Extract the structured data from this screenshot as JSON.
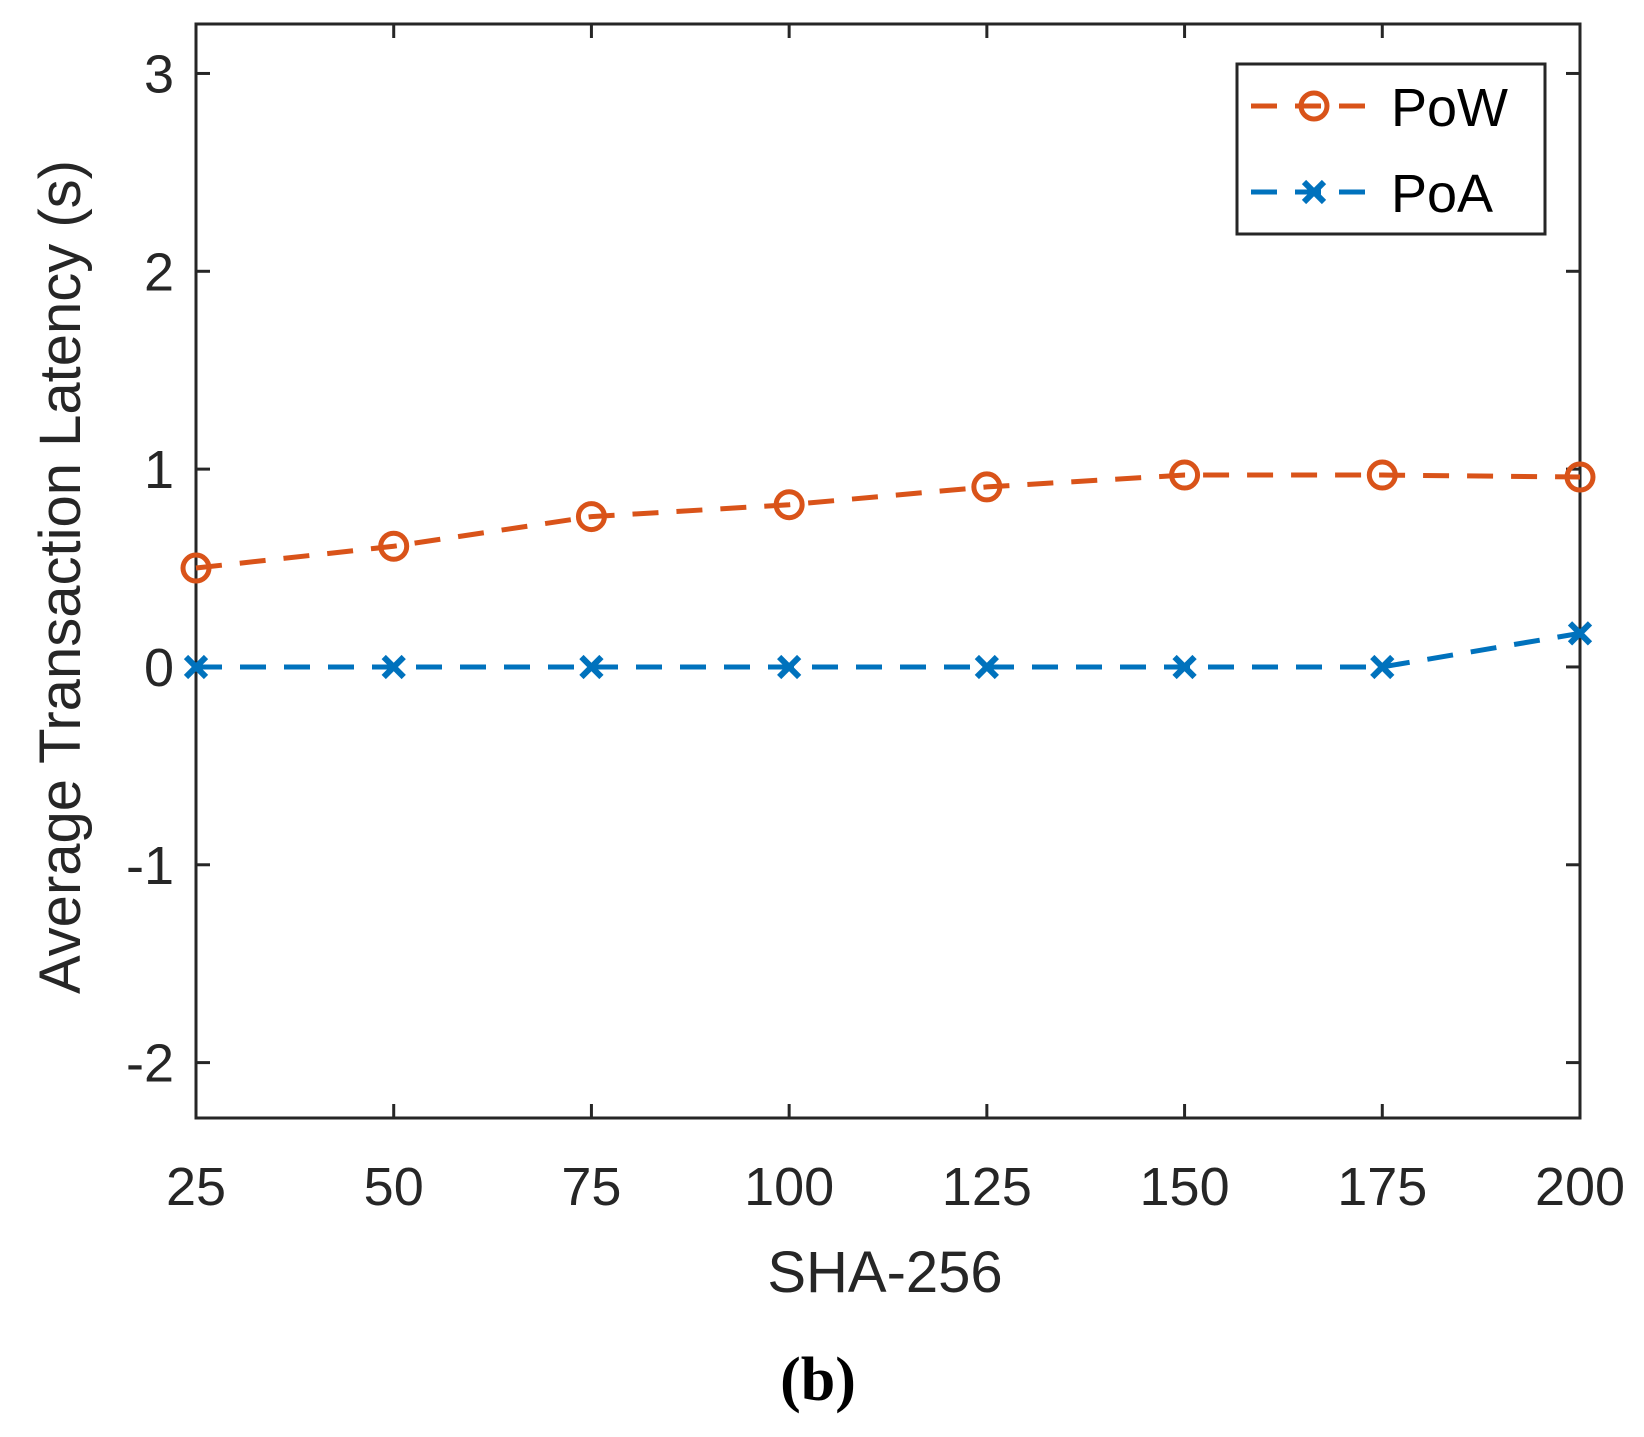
{
  "chart_data": {
    "type": "line",
    "title": "",
    "xlabel": "SHA-256",
    "ylabel": "Average Transaction Latency (s)",
    "x": [
      25,
      50,
      75,
      100,
      125,
      150,
      175,
      200
    ],
    "xticks": [
      25,
      50,
      75,
      100,
      125,
      150,
      175,
      200
    ],
    "yticks": [
      -2,
      -1,
      0,
      1,
      2,
      3
    ],
    "xlim": [
      25,
      200
    ],
    "ylim": [
      -2.28,
      3.25
    ],
    "grid": false,
    "legend_position": "top-right",
    "series": [
      {
        "name": "PoW",
        "color": "#D95319",
        "marker": "circle",
        "line_style": "dashed",
        "values": [
          0.5,
          0.61,
          0.76,
          0.82,
          0.91,
          0.97,
          0.97,
          0.96
        ]
      },
      {
        "name": "PoA",
        "color": "#0072BD",
        "marker": "x",
        "line_style": "dashed",
        "values": [
          0.0,
          0.0,
          0.0,
          0.0,
          0.0,
          0.0,
          0.0,
          0.17
        ]
      }
    ]
  },
  "caption": "(b)"
}
